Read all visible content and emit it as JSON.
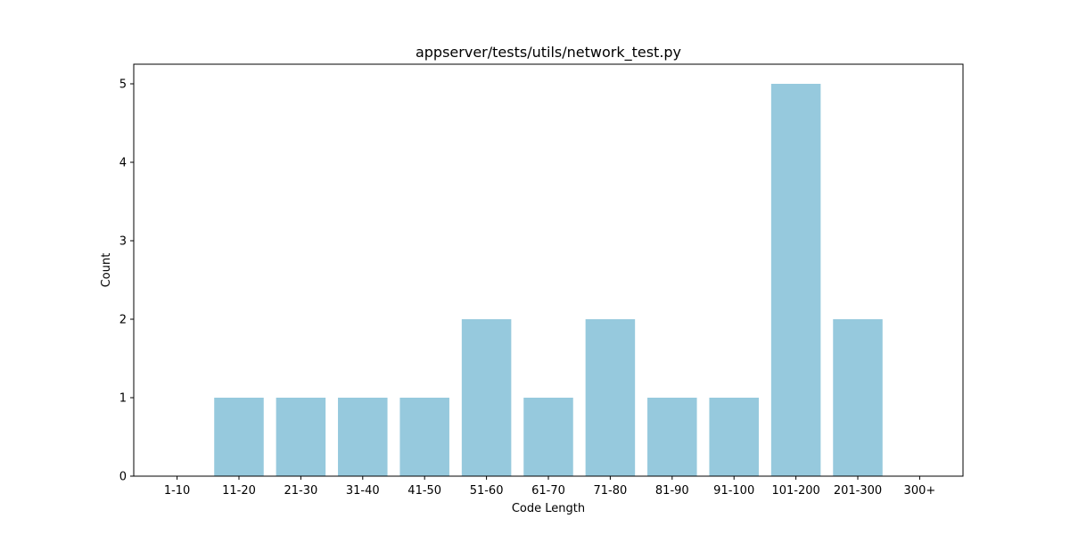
{
  "chart_data": {
    "type": "bar",
    "title": "appserver/tests/utils/network_test.py",
    "xlabel": "Code Length",
    "ylabel": "Count",
    "categories": [
      "1-10",
      "11-20",
      "21-30",
      "31-40",
      "41-50",
      "51-60",
      "61-70",
      "71-80",
      "81-90",
      "91-100",
      "101-200",
      "201-300",
      "300+"
    ],
    "values": [
      0,
      1,
      1,
      1,
      1,
      2,
      1,
      2,
      1,
      1,
      5,
      2,
      0
    ],
    "yticks": [
      0,
      1,
      2,
      3,
      4,
      5
    ],
    "ylim": [
      0,
      5.25
    ],
    "grid": false,
    "bar_color": "#96c9dd"
  }
}
